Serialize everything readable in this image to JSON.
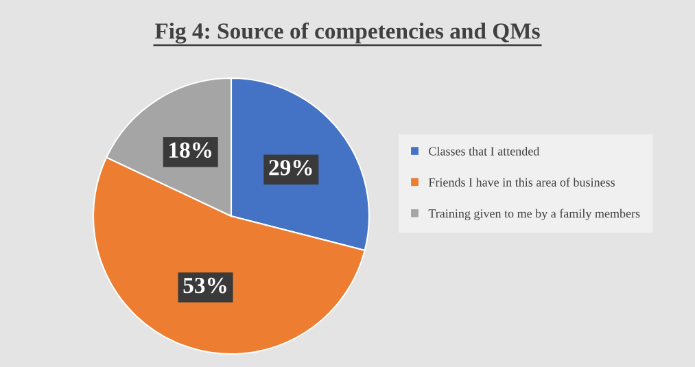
{
  "chart_data": {
    "type": "pie",
    "title": "Fig 4: Source of competencies and QMs",
    "categories": [
      "Classes that I attended",
      "Friends I have in this area of business",
      "Training given to me by a family members"
    ],
    "values": [
      29,
      53,
      18
    ],
    "colors": [
      "#4472c4",
      "#ed7d31",
      "#a5a5a5"
    ],
    "value_labels": [
      "29%",
      "53%",
      "18%"
    ],
    "legend": "right"
  }
}
